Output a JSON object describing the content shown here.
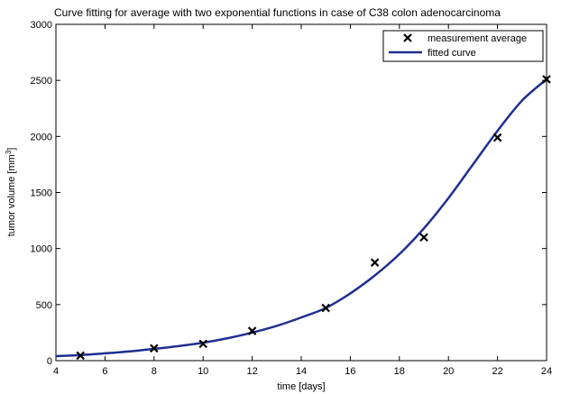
{
  "chart_data": {
    "type": "line",
    "title": "Curve fitting for average with two exponential functions in case of C38 colon adenocarcinoma",
    "xlabel": "time [days]",
    "ylabel_text": "tumor volume [mm",
    "ylabel_sup": "3",
    "ylabel_close": "]",
    "xlim": [
      4,
      24
    ],
    "ylim": [
      0,
      3000
    ],
    "x_ticks": [
      4,
      6,
      8,
      10,
      12,
      14,
      16,
      18,
      20,
      22,
      24
    ],
    "y_ticks": [
      0,
      500,
      1000,
      1500,
      2000,
      2500,
      3000
    ],
    "grid": false,
    "legend_position": "top-right",
    "series": [
      {
        "name": "measurement average",
        "kind": "scatter",
        "marker": "x",
        "color": "#000000",
        "x": [
          5,
          8,
          10,
          12,
          15,
          17,
          19,
          22,
          24
        ],
        "y": [
          45,
          110,
          150,
          265,
          470,
          875,
          1100,
          1990,
          2510
        ]
      },
      {
        "name": "fitted curve",
        "kind": "line",
        "color": "#1f2f8f",
        "x": [
          4,
          5,
          6,
          7,
          8,
          9,
          10,
          11,
          12,
          13,
          14,
          15,
          16,
          17,
          18,
          19,
          20,
          21,
          22,
          23,
          24
        ],
        "y": [
          40,
          50,
          65,
          82,
          105,
          130,
          160,
          200,
          250,
          310,
          385,
          470,
          600,
          760,
          950,
          1180,
          1450,
          1750,
          2050,
          2320,
          2510
        ]
      }
    ]
  }
}
